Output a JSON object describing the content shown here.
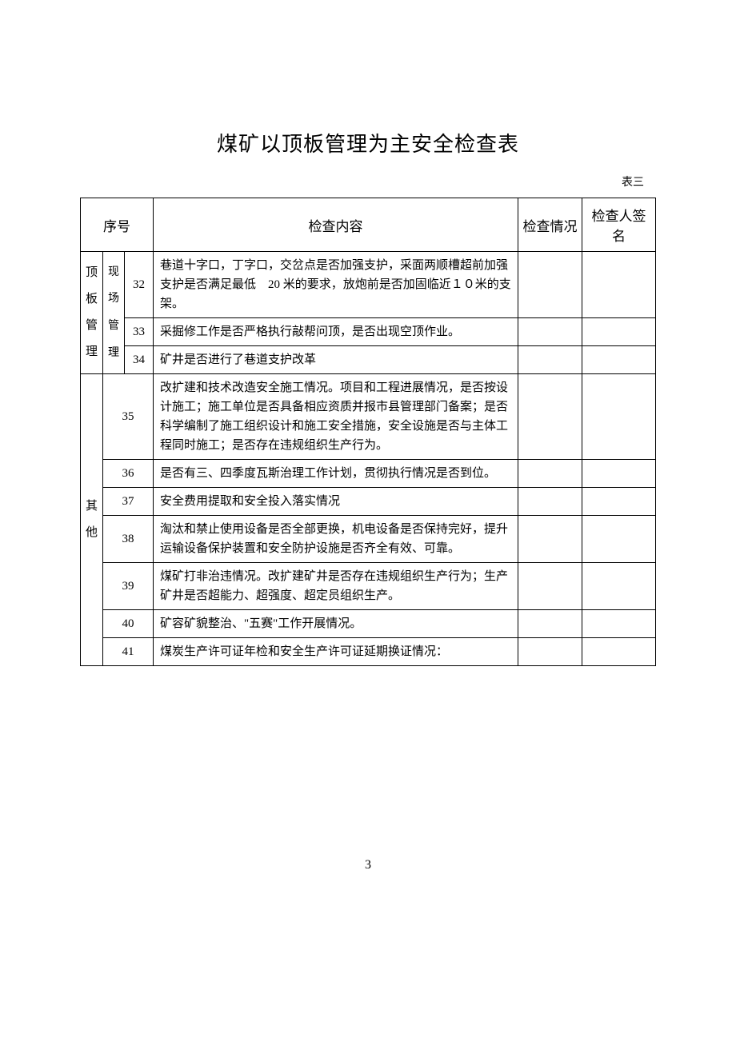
{
  "title": "煤矿以顶板管理为主安全检查表",
  "table_label": "表三",
  "headers": {
    "seq": "序号",
    "content": "检查内容",
    "status": "检查情况",
    "sign": "检查人签名"
  },
  "section1": {
    "group_label": "顶板管理",
    "sub_label": "现场管理",
    "rows": [
      {
        "num": "32",
        "content": "巷道十字口，丁字口，交岔点是否加强支护，采面两顺槽超前加强支护是否满足最低　20 米的要求，放炮前是否加固临近１０米的支架。"
      },
      {
        "num": "33",
        "content": "采掘修工作是否严格执行敲帮问顶，是否出现空顶作业。"
      },
      {
        "num": "34",
        "content": "矿井是否进行了巷道支护改革"
      }
    ]
  },
  "section2": {
    "group_label": "其他",
    "rows": [
      {
        "num": "35",
        "content": "改扩建和技术改造安全施工情况。项目和工程进展情况，是否按设计施工；施工单位是否具备相应资质并报市县管理部门备案；是否科学编制了施工组织设计和施工安全措施，安全设施是否与主体工程同时施工；是否存在违规组织生产行为。"
      },
      {
        "num": "36",
        "content": "是否有三、四季度瓦斯治理工作计划，贯彻执行情况是否到位。"
      },
      {
        "num": "37",
        "content": "安全费用提取和安全投入落实情况"
      },
      {
        "num": "38",
        "content": "淘汰和禁止使用设备是否全部更换，机电设备是否保持完好，提升运输设备保护装置和安全防护设施是否齐全有效、可靠。"
      },
      {
        "num": "39",
        "content": "煤矿打非治违情况。改扩建矿井是否存在违规组织生产行为；生产矿井是否超能力、超强度、超定员组织生产。"
      },
      {
        "num": "40",
        "content": "矿容矿貌整治、\"五赛\"工作开展情况。"
      },
      {
        "num": "41",
        "content": "煤炭生产许可证年检和安全生产许可证延期换证情况："
      }
    ]
  },
  "page_number": "3"
}
